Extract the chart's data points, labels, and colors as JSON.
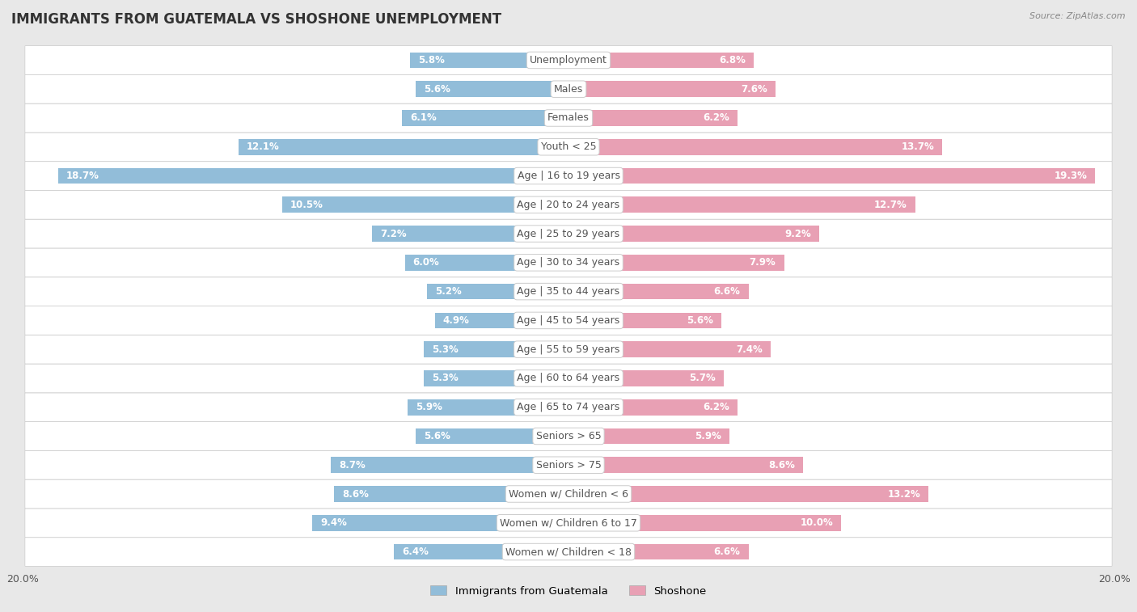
{
  "title": "IMMIGRANTS FROM GUATEMALA VS SHOSHONE UNEMPLOYMENT",
  "source": "Source: ZipAtlas.com",
  "categories": [
    "Unemployment",
    "Males",
    "Females",
    "Youth < 25",
    "Age | 16 to 19 years",
    "Age | 20 to 24 years",
    "Age | 25 to 29 years",
    "Age | 30 to 34 years",
    "Age | 35 to 44 years",
    "Age | 45 to 54 years",
    "Age | 55 to 59 years",
    "Age | 60 to 64 years",
    "Age | 65 to 74 years",
    "Seniors > 65",
    "Seniors > 75",
    "Women w/ Children < 6",
    "Women w/ Children 6 to 17",
    "Women w/ Children < 18"
  ],
  "left_values": [
    5.8,
    5.6,
    6.1,
    12.1,
    18.7,
    10.5,
    7.2,
    6.0,
    5.2,
    4.9,
    5.3,
    5.3,
    5.9,
    5.6,
    8.7,
    8.6,
    9.4,
    6.4
  ],
  "right_values": [
    6.8,
    7.6,
    6.2,
    13.7,
    19.3,
    12.7,
    9.2,
    7.9,
    6.6,
    5.6,
    7.4,
    5.7,
    6.2,
    5.9,
    8.6,
    13.2,
    10.0,
    6.6
  ],
  "left_color": "#92bdd9",
  "right_color": "#e8a0b4",
  "left_label": "Immigrants from Guatemala",
  "right_label": "Shoshone",
  "xlim": 20.0,
  "bg_color": "#e8e8e8",
  "row_bg": "#f5f5f5",
  "row_border": "#d0d0d0",
  "title_fontsize": 12,
  "label_fontsize": 9,
  "value_fontsize": 8.5,
  "axis_label_fontsize": 9
}
